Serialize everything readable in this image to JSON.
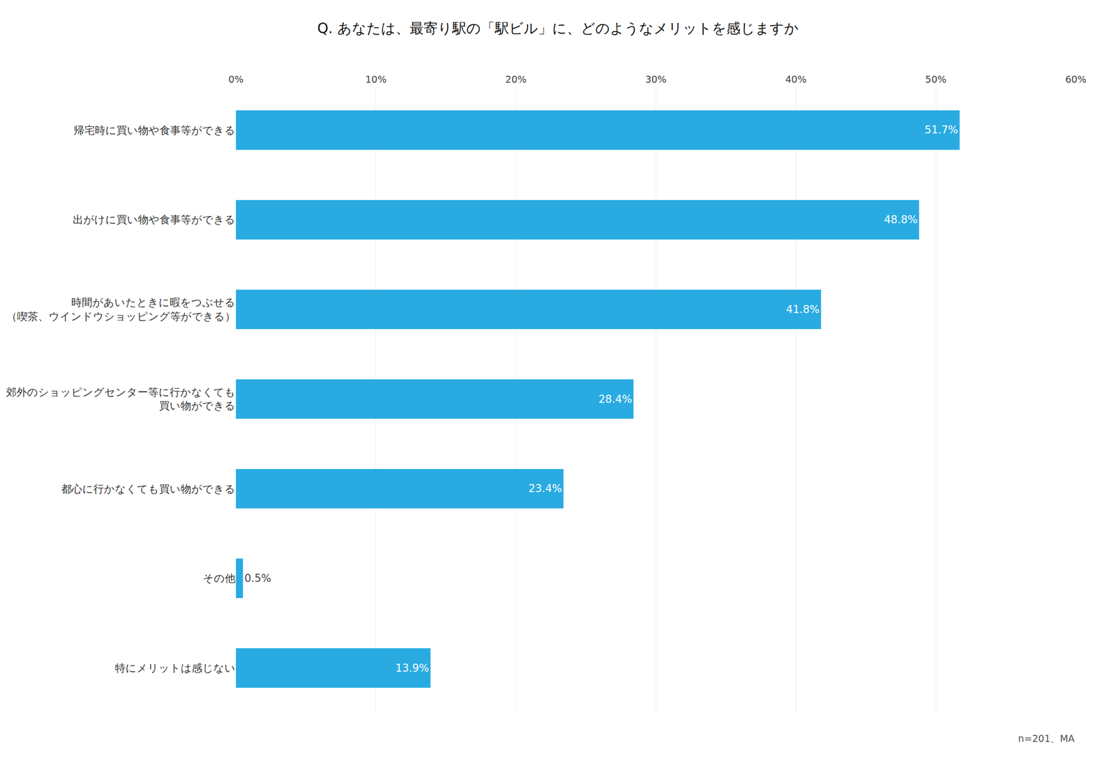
{
  "chart_data": {
    "type": "bar",
    "orientation": "horizontal",
    "title": "Q. あなたは、最寄り駅の「駅ビル」に、どのようなメリットを感じますか",
    "categories": [
      "帰宅時に買い物や食事等ができる",
      "出がけに買い物や食事等ができる",
      "時間があいたときに暇をつぶせる\n（喫茶、ウインドウショッピング等ができる）",
      "郊外のショッピングセンター等に行かなくても\n買い物ができる",
      "都心に行かなくても買い物ができる",
      "その他",
      "特にメリットは感じない"
    ],
    "values": [
      51.7,
      48.8,
      41.8,
      28.4,
      23.4,
      0.5,
      13.9
    ],
    "value_labels": [
      "51.7%",
      "48.8%",
      "41.8%",
      "28.4%",
      "23.4%",
      "0.5%",
      "13.9%"
    ],
    "data_labels": true,
    "color": "#29ABE2",
    "xlim": [
      0,
      60
    ],
    "xticks": [
      {
        "value": 0,
        "label": "0%"
      },
      {
        "value": 10,
        "label": "10%"
      },
      {
        "value": 20,
        "label": "20%"
      },
      {
        "value": 30,
        "label": "30%"
      },
      {
        "value": 40,
        "label": "40%"
      },
      {
        "value": 50,
        "label": "50%"
      },
      {
        "value": 60,
        "label": "60%"
      }
    ],
    "grid": true,
    "annotations": [
      "n=201、MA"
    ]
  }
}
